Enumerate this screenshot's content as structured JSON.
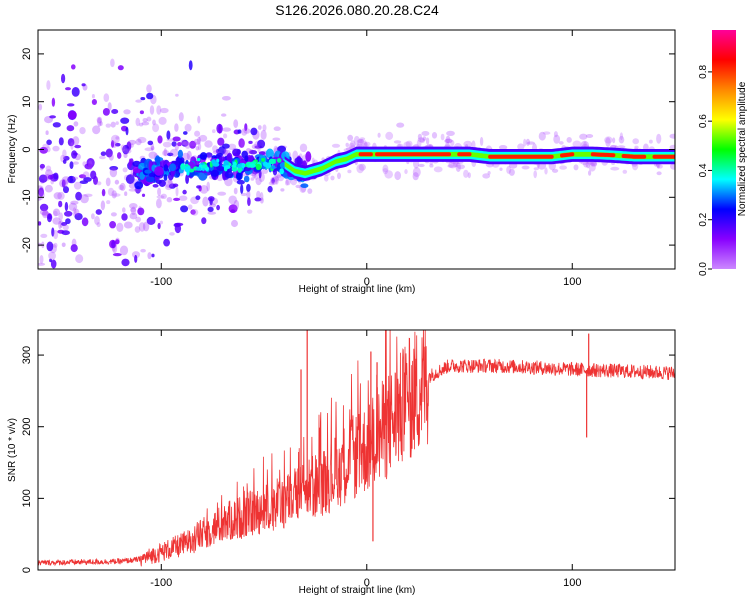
{
  "title": "S126.2026.080.20.28.C24",
  "chart_data": [
    {
      "type": "heatmap",
      "name": "spectrogram",
      "xlabel": "Height of straight line (km)",
      "ylabel": "Frequency (Hz)",
      "xlim": [
        -160,
        150
      ],
      "ylim": [
        -25,
        25
      ],
      "x_ticks": [
        -100,
        0,
        100
      ],
      "y_ticks": [
        -20,
        -10,
        0,
        10,
        20
      ],
      "colorbar": {
        "label": "Normalized spectral amplitude",
        "range": [
          0.0,
          0.97
        ],
        "ticks": [
          0.0,
          0.2,
          0.4,
          0.6,
          0.8
        ],
        "tick_labels": [
          "0.0",
          "0.2",
          "0.4",
          "0.6",
          "0.8"
        ],
        "colors": [
          "#cc88ff",
          "#8800ff",
          "#0000ff",
          "#00ffff",
          "#00ff00",
          "#ffff00",
          "#ff8800",
          "#ff0000",
          "#ff0099"
        ]
      },
      "ridge": {
        "x": [
          -160,
          -110,
          -90,
          -60,
          -40,
          -35,
          -30,
          -22,
          -15,
          -10,
          -5,
          0,
          10,
          30,
          50,
          60,
          70,
          90,
          100,
          110,
          120,
          130,
          150
        ],
        "freq": [
          -6,
          -5,
          -4,
          -3,
          -3,
          -4.5,
          -5,
          -4,
          -2.5,
          -2,
          -1,
          -1,
          -1,
          -1,
          -1,
          -1.5,
          -1.5,
          -1.5,
          -1,
          -1,
          -1.2,
          -1.5,
          -1.5
        ]
      }
    },
    {
      "type": "line",
      "name": "snr",
      "xlabel": "Height of straight line (km)",
      "ylabel": "SNR (10 * v/v)",
      "xlim": [
        -160,
        150
      ],
      "ylim": [
        0,
        335
      ],
      "x_ticks": [
        -100,
        0,
        100
      ],
      "y_ticks": [
        0,
        100,
        200,
        300
      ],
      "color": "#ee3333",
      "envelope": {
        "x": [
          -160,
          -120,
          -110,
          -100,
          -90,
          -80,
          -70,
          -60,
          -50,
          -40,
          -30,
          -20,
          -10,
          0,
          10,
          20,
          30,
          40,
          60,
          80,
          100,
          120,
          150
        ],
        "y": [
          10,
          12,
          15,
          25,
          35,
          50,
          65,
          75,
          85,
          95,
          110,
          125,
          150,
          170,
          200,
          235,
          270,
          285,
          285,
          283,
          280,
          278,
          275
        ]
      },
      "spikes": [
        {
          "x": -29,
          "y": 335
        },
        {
          "x": -32,
          "y": 280
        },
        {
          "x": 2,
          "y": 305
        },
        {
          "x": 5,
          "y": 290
        },
        {
          "x": 3,
          "y": 40
        },
        {
          "x": 108,
          "y": 330
        },
        {
          "x": 107,
          "y": 185
        }
      ]
    }
  ]
}
